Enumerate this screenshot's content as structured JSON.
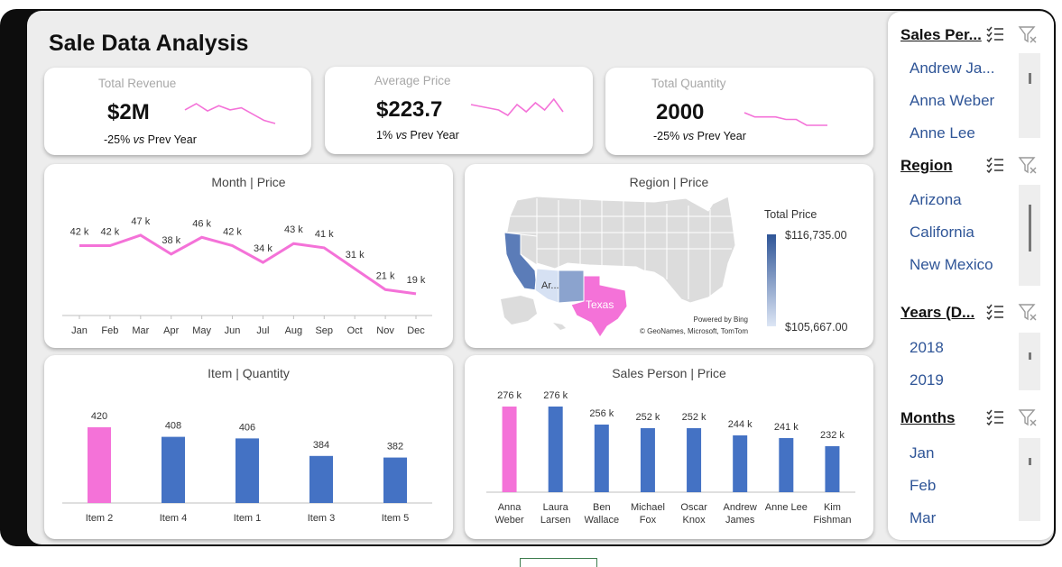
{
  "dashboard": {
    "title": "Sale Data Analysis"
  },
  "kpis": [
    {
      "label": "Total Revenue",
      "value": "$2M",
      "change": "-25%",
      "vs": "vs",
      "compare": "Prev Year",
      "spark": [
        50,
        56,
        49,
        54,
        50,
        52,
        46,
        40,
        37
      ]
    },
    {
      "label": "Average Price",
      "value": "$223.7",
      "change": "1%",
      "vs": "vs",
      "compare": "Prev Year",
      "spark": [
        52,
        50,
        48,
        46,
        40,
        52,
        44,
        54,
        46,
        58,
        44
      ]
    },
    {
      "label": "Total Quantity",
      "value": "2000",
      "change": "-25%",
      "vs": "vs",
      "compare": "Prev Year",
      "spark": [
        60,
        55,
        55,
        55,
        52,
        52,
        45,
        45,
        45
      ]
    }
  ],
  "colors": {
    "accent": "#f472d8",
    "bar": "#4472c4",
    "slicer_text": "#2f5597"
  },
  "month_chart": {
    "title": "Month | Price",
    "chart_data": {
      "type": "line",
      "categories": [
        "Jan",
        "Feb",
        "Mar",
        "Apr",
        "May",
        "Jun",
        "Jul",
        "Aug",
        "Sep",
        "Oct",
        "Nov",
        "Dec"
      ],
      "values": [
        42,
        42,
        47,
        38,
        46,
        42,
        34,
        43,
        41,
        31,
        21,
        19
      ],
      "labels": [
        "42 k",
        "42 k",
        "47 k",
        "38 k",
        "46 k",
        "42 k",
        "34 k",
        "43 k",
        "41 k",
        "31 k",
        "21 k",
        "19 k"
      ],
      "ylim": [
        0,
        50
      ]
    }
  },
  "region_chart": {
    "title": "Region | Price",
    "legend_title": "Total Price",
    "legend_max": "$116,735.00",
    "legend_min": "$105,667.00",
    "label_texas": "Texas",
    "label_arizona": "Ar...",
    "attribution_1": "Powered by Bing",
    "attribution_2": "© GeoNames, Microsoft, TomTom"
  },
  "item_chart": {
    "title": "Item | Quantity",
    "chart_data": {
      "type": "bar",
      "categories": [
        "Item 2",
        "Item 4",
        "Item 1",
        "Item 3",
        "Item 5"
      ],
      "values": [
        420,
        408,
        406,
        384,
        382
      ],
      "highlight_index": 0,
      "ylim": [
        360,
        420
      ]
    }
  },
  "salesperson_chart": {
    "title": "Sales Person | Price",
    "chart_data": {
      "type": "bar",
      "categories": [
        [
          "Anna",
          "Weber"
        ],
        [
          "Laura",
          "Larsen"
        ],
        [
          "Ben",
          "Wallace"
        ],
        [
          "Michael",
          "Fox"
        ],
        [
          "Oscar",
          "Knox"
        ],
        [
          "Andrew",
          "James"
        ],
        [
          "Anne Lee",
          ""
        ],
        [
          "Kim",
          "Fishman"
        ]
      ],
      "values": [
        276,
        276,
        256,
        252,
        252,
        244,
        241,
        232
      ],
      "labels": [
        "276 k",
        "276 k",
        "256 k",
        "252 k",
        "252 k",
        "244 k",
        "241 k",
        "232 k"
      ],
      "highlight_index": 0,
      "ylim": [
        220,
        276
      ]
    }
  },
  "slicers": [
    {
      "title": "Sales Per...",
      "items": [
        "Andrew Ja...",
        "Anna Weber",
        "Anne Lee"
      ]
    },
    {
      "title": "Region",
      "items": [
        "Arizona",
        "California",
        "New Mexico"
      ]
    },
    {
      "title": "Years (D...",
      "items": [
        "2018",
        "2019"
      ]
    },
    {
      "title": "Months",
      "items": [
        "Jan",
        "Feb",
        "Mar"
      ]
    }
  ]
}
